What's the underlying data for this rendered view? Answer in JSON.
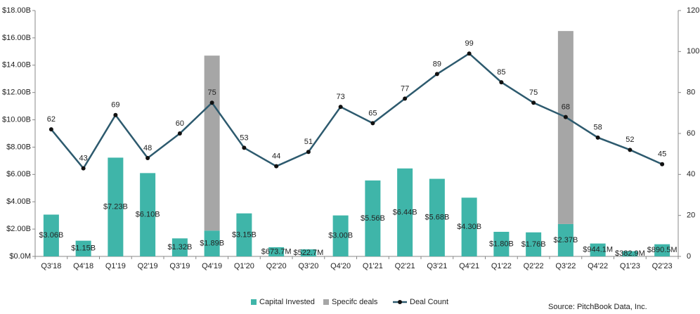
{
  "chart_data": {
    "type": "bar-line",
    "categories": [
      "Q3'18",
      "Q4'18",
      "Q1'19",
      "Q2'19",
      "Q3'19",
      "Q4'19",
      "Q1'20",
      "Q2'20",
      "Q3'20",
      "Q4'20",
      "Q1'21",
      "Q2'21",
      "Q3'21",
      "Q4'21",
      "Q1'22",
      "Q2'22",
      "Q3'22",
      "Q4'22",
      "Q1'23",
      "Q2'23"
    ],
    "series": [
      {
        "name": "Capital Invested",
        "type": "bar",
        "color": "#3fb5a9",
        "values": [
          3.06,
          1.15,
          7.23,
          6.1,
          1.32,
          1.89,
          3.15,
          0.6737,
          0.5227,
          3.0,
          5.56,
          6.44,
          5.68,
          4.3,
          1.8,
          1.76,
          2.37,
          0.9441,
          0.3829,
          0.8905
        ],
        "value_labels": [
          "$3.06B",
          "$1.15B",
          "$7.23B",
          "$6.10B",
          "$1.32B",
          "$1.89B",
          "$3.15B",
          "$673.7M",
          "$522.7M",
          "$3.00B",
          "$5.56B",
          "$6.44B",
          "$5.68B",
          "$4.30B",
          "$1.80B",
          "$1.76B",
          "$2.37B",
          "$944.1M",
          "$382.9M",
          "$890.5M"
        ]
      },
      {
        "name": "Specifc deals",
        "type": "bar",
        "color": "#a6a6a6",
        "values": [
          null,
          null,
          null,
          null,
          null,
          12.81,
          null,
          null,
          null,
          null,
          null,
          null,
          null,
          null,
          null,
          null,
          14.13,
          null,
          null,
          null
        ]
      },
      {
        "name": "Deal Count",
        "type": "line",
        "axis": "y2",
        "color": "#2d5a6e",
        "values": [
          62,
          43,
          69,
          48,
          60,
          75,
          53,
          44,
          51,
          73,
          65,
          77,
          89,
          99,
          85,
          75,
          68,
          58,
          52,
          45
        ]
      }
    ],
    "ylim": [
      0,
      18
    ],
    "yticks": [
      {
        "value": 0,
        "label": "$0.0M"
      },
      {
        "value": 2,
        "label": "$2.00B"
      },
      {
        "value": 4,
        "label": "$4.00B"
      },
      {
        "value": 6,
        "label": "$6.00B"
      },
      {
        "value": 8,
        "label": "$8.00B"
      },
      {
        "value": 10,
        "label": "$10.00B"
      },
      {
        "value": 12,
        "label": "$12.00B"
      },
      {
        "value": 14,
        "label": "$14.00B"
      },
      {
        "value": 16,
        "label": "$16.00B"
      },
      {
        "value": 18,
        "label": "$18.00B"
      }
    ],
    "y2lim": [
      0,
      120
    ],
    "y2ticks": [
      0,
      20,
      40,
      60,
      80,
      100,
      120
    ],
    "legend": "bottom",
    "source": "Source: PitchBook Data, Inc."
  }
}
